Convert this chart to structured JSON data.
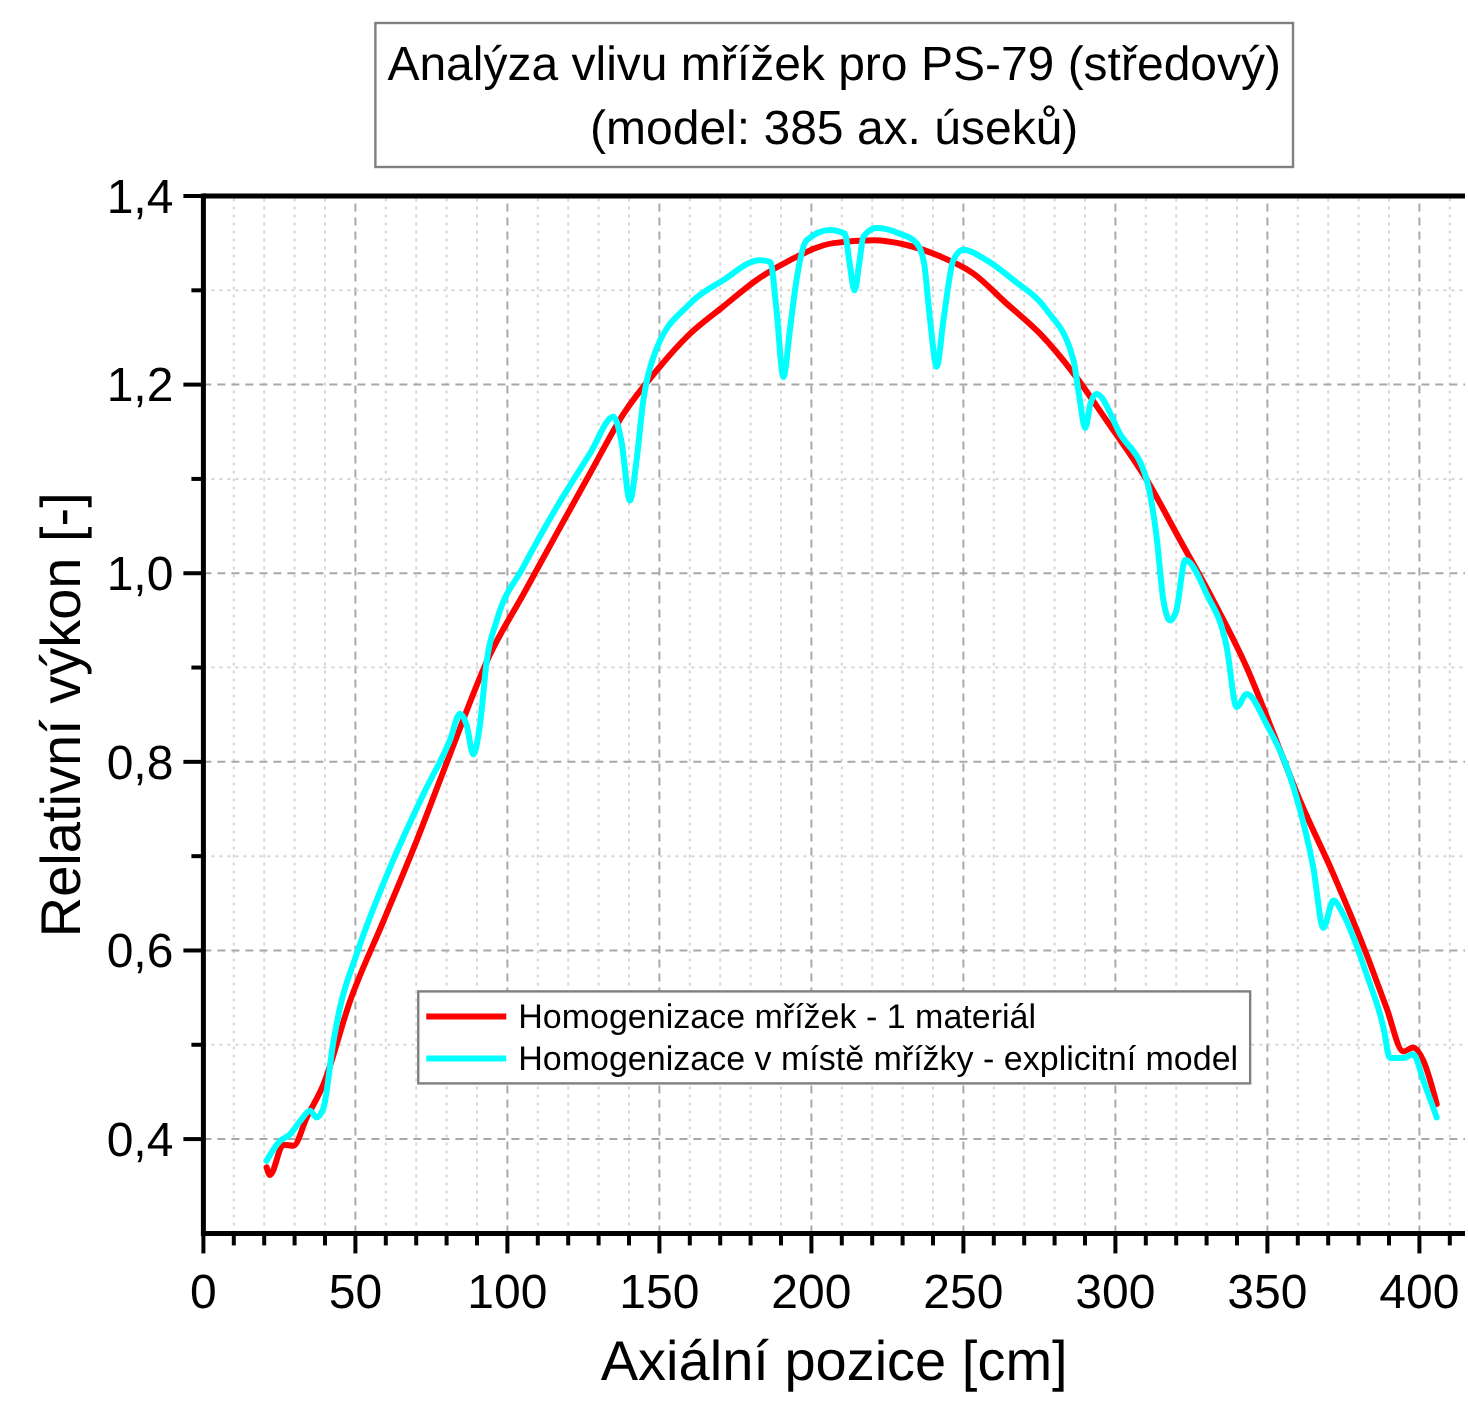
{
  "chart_data": {
    "type": "line",
    "title": "Analýza vlivu mřížek pro PS-79 (středový)",
    "subtitle": "(model: 385 ax. úseků)",
    "xlabel": "Axiální pozice [cm]",
    "ylabel": "Relativní výkon [-]",
    "xlim": [
      0,
      415
    ],
    "ylim": [
      0.3,
      1.4
    ],
    "xticks": [
      0,
      {
        "value": 10,
        "label": null
      },
      {
        "value": 20,
        "label": null
      },
      {
        "value": 30,
        "label": null
      },
      {
        "value": 40,
        "label": null
      },
      50,
      {
        "value": 60,
        "label": null
      },
      {
        "value": 70,
        "label": null
      },
      {
        "value": 80,
        "label": null
      },
      {
        "value": 90,
        "label": null
      },
      100,
      {
        "value": 110,
        "label": null
      },
      {
        "value": 120,
        "label": null
      },
      {
        "value": 130,
        "label": null
      },
      {
        "value": 140,
        "label": null
      },
      150,
      {
        "value": 160,
        "label": null
      },
      {
        "value": 170,
        "label": null
      },
      {
        "value": 180,
        "label": null
      },
      {
        "value": 190,
        "label": null
      },
      200,
      {
        "value": 210,
        "label": null
      },
      {
        "value": 220,
        "label": null
      },
      {
        "value": 230,
        "label": null
      },
      {
        "value": 240,
        "label": null
      },
      250,
      {
        "value": 260,
        "label": null
      },
      {
        "value": 270,
        "label": null
      },
      {
        "value": 280,
        "label": null
      },
      {
        "value": 290,
        "label": null
      },
      300,
      {
        "value": 310,
        "label": null
      },
      {
        "value": 320,
        "label": null
      },
      {
        "value": 330,
        "label": null
      },
      {
        "value": 340,
        "label": null
      },
      350,
      {
        "value": 360,
        "label": null
      },
      {
        "value": 370,
        "label": null
      },
      {
        "value": 380,
        "label": null
      },
      {
        "value": 390,
        "label": null
      },
      400,
      {
        "value": 410,
        "label": null
      }
    ],
    "yticks": [
      {
        "value": 0.4,
        "label": "0,4"
      },
      {
        "value": 0.5,
        "label": null
      },
      {
        "value": 0.6,
        "label": "0,6"
      },
      {
        "value": 0.7,
        "label": null
      },
      {
        "value": 0.8,
        "label": "0,8"
      },
      {
        "value": 0.9,
        "label": null
      },
      {
        "value": 1.0,
        "label": "1,0"
      },
      {
        "value": 1.1,
        "label": null
      },
      {
        "value": 1.2,
        "label": "1,2"
      },
      {
        "value": 1.3,
        "label": null
      },
      {
        "value": 1.4,
        "label": "1,4"
      }
    ],
    "grid": true,
    "legend": "bottom",
    "series": [
      {
        "name": "Homogenizace mřížek - 1 materiál",
        "color": "#ff0000",
        "x": [
          20.8,
          21.9,
          26.3,
          29.6,
          34,
          39.5,
          48.2,
          59.2,
          70.1,
          81.1,
          94.3,
          105.3,
          116.2,
          127.2,
          138.2,
          149.1,
          160.1,
          171.1,
          182,
          193,
          207.2,
          220.4,
          231.3,
          242.3,
          253.2,
          264.2,
          275.2,
          286.2,
          297.1,
          310.3,
          321.3,
          332.2,
          343.2,
          352,
          360.7,
          371.7,
          382.6,
          389.2,
          394.7,
          398,
          401.3,
          405.7
        ],
        "values": [
          0.37,
          0.362,
          0.394,
          0.393,
          0.423,
          0.458,
          0.546,
          0.631,
          0.716,
          0.808,
          0.914,
          0.978,
          1.042,
          1.106,
          1.169,
          1.215,
          1.254,
          1.283,
          1.311,
          1.332,
          1.35,
          1.353,
          1.348,
          1.336,
          1.318,
          1.286,
          1.254,
          1.212,
          1.162,
          1.099,
          1.035,
          0.971,
          0.9,
          0.83,
          0.759,
          0.681,
          0.596,
          0.539,
          0.493,
          0.497,
          0.483,
          0.437
        ]
      },
      {
        "name": "Homogenizace v místě mřížky - explicitní model",
        "color": "#00ffff",
        "x": [
          20.8,
          25.2,
          28.5,
          31.8,
          35.1,
          37.2,
          39.5,
          42.8,
          44.9,
          50.4,
          61.4,
          72.4,
          81.1,
          84.4,
          86.5,
          88.8,
          91,
          93.2,
          96.5,
          105.3,
          116.2,
          127.2,
          134.9,
          137.5,
          140.3,
          142.5,
          144.7,
          148,
          160.1,
          171.1,
          183,
          186.5,
          188.5,
          190.8,
          193,
          195.1,
          198.4,
          206.1,
          211,
          212.5,
          214.2,
          215.8,
          217.1,
          221.4,
          229.1,
          234.6,
          237,
          239,
          241.2,
          243.5,
          246.7,
          250,
          257.6,
          266.4,
          277.4,
          286.2,
          288,
          290.1,
          291.8,
          293.8,
          301.5,
          310.3,
          313.5,
          315.8,
          318,
          320,
          323,
          330,
          336.6,
          339.9,
          343.2,
          349.7,
          358.6,
          365.1,
          368.4,
          371.7,
          375,
          382.6,
          388.2,
          390.3,
          394.7,
          398,
          401.3,
          405.7
        ],
        "values": [
          0.377,
          0.398,
          0.405,
          0.419,
          0.43,
          0.423,
          0.433,
          0.504,
          0.539,
          0.596,
          0.688,
          0.766,
          0.823,
          0.851,
          0.84,
          0.808,
          0.84,
          0.907,
          0.95,
          1.007,
          1.07,
          1.127,
          1.166,
          1.14,
          1.077,
          1.12,
          1.183,
          1.229,
          1.286,
          1.311,
          1.332,
          1.33,
          1.28,
          1.208,
          1.26,
          1.311,
          1.353,
          1.364,
          1.36,
          1.33,
          1.3,
          1.33,
          1.357,
          1.366,
          1.36,
          1.35,
          1.33,
          1.27,
          1.219,
          1.27,
          1.332,
          1.343,
          1.332,
          1.311,
          1.279,
          1.226,
          1.19,
          1.154,
          1.18,
          1.19,
          1.148,
          1.099,
          1.04,
          0.971,
          0.95,
          0.96,
          1.014,
          0.978,
          0.922,
          0.858,
          0.872,
          0.84,
          0.773,
          0.688,
          0.624,
          0.653,
          0.638,
          0.575,
          0.518,
          0.486,
          0.486,
          0.49,
          0.462,
          0.423
        ]
      }
    ]
  }
}
